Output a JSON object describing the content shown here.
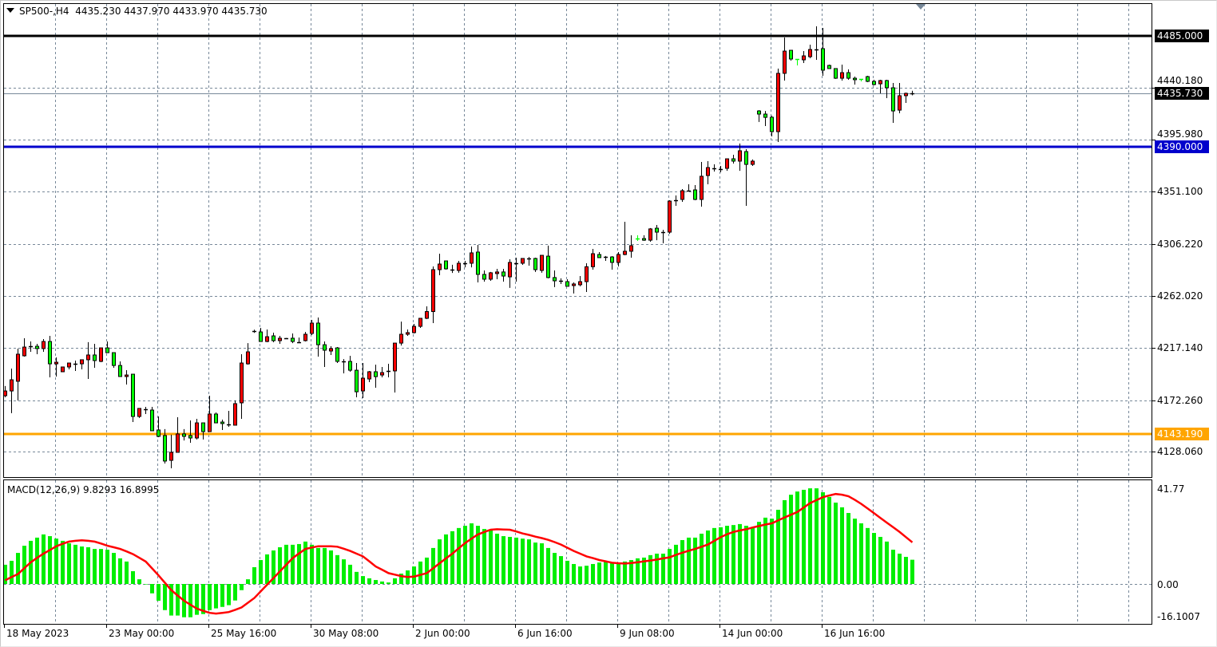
{
  "header": {
    "menu_icon": "triangle-down-icon",
    "symbol_timeframe": "SP500-,H4",
    "ohlc": "4435.230 4437.970 4433.970 4435.730"
  },
  "colors": {
    "bull_body": "#ff0000",
    "bear_body": "#00ff00",
    "wick": "#000000",
    "grid": "#778899",
    "macd_histogram": "#00ee00",
    "macd_signal": "#ff0000",
    "current_price_line": "#778899"
  },
  "price_axis": {
    "ticks": [
      "4440.180",
      "4395.980",
      "4351.100",
      "4306.220",
      "4262.020",
      "4217.140",
      "4172.260",
      "4128.060"
    ],
    "current_price": "4435.730"
  },
  "levels": [
    {
      "price": "4485.000",
      "color": "#000000"
    },
    {
      "price": "4390.000",
      "color": "#0000cc"
    },
    {
      "price": "4143.190",
      "color": "#ffa500"
    }
  ],
  "time_axis": {
    "labels": [
      "18 May 2023",
      "23 May 00:00",
      "25 May 16:00",
      "30 May 08:00",
      "2 Jun 00:00",
      "6 Jun 16:00",
      "9 Jun 08:00",
      "14 Jun 00:00",
      "16 Jun 16:00"
    ]
  },
  "macd": {
    "label": "MACD(12,26,9) 9.8293 16.8995",
    "scale_labels": [
      "41.77",
      "0.00",
      "-16.1007"
    ],
    "range": [
      -16.1007,
      41.77
    ]
  },
  "chart_data": {
    "type": "candlestick",
    "symbol": "SP500-",
    "timeframe": "H4",
    "ylim": [
      4100,
      4500
    ],
    "grid": true,
    "candle_fields": [
      "open",
      "high",
      "low",
      "close"
    ],
    "candles": [
      [
        4176.0,
        4184.3,
        4174.7,
        4180.1
      ],
      [
        4180.1,
        4199.3,
        4161.0,
        4189.7
      ],
      [
        4188.4,
        4216.5,
        4171.9,
        4211.7
      ],
      [
        4210.3,
        4225.4,
        4209.6,
        4217.8
      ],
      [
        4218.3,
        4222.6,
        4213.7,
        4218.3
      ],
      [
        4218.5,
        4220.6,
        4211.7,
        4216.5
      ],
      [
        4216.5,
        4224.7,
        4213.7,
        4222.6
      ],
      [
        4222.6,
        4227.4,
        4191.8,
        4203.4
      ],
      [
        4203.4,
        4208.9,
        4192.5,
        4204.8
      ],
      [
        4196.6,
        4200.7,
        4196.6,
        4200.7
      ],
      [
        4200.7,
        4204.1,
        4198.6,
        4204.1
      ],
      [
        4203.6,
        4206.2,
        4197.3,
        4203.6
      ],
      [
        4203.4,
        4206.9,
        4198.6,
        4206.9
      ],
      [
        4206.9,
        4222.0,
        4190.4,
        4211.0
      ],
      [
        4211.0,
        4220.6,
        4200.0,
        4206.2
      ],
      [
        4205.5,
        4217.1,
        4204.8,
        4217.1
      ],
      [
        4217.1,
        4222.6,
        4213.0,
        4213.0
      ],
      [
        4213.0,
        4213.0,
        4200.0,
        4202.0
      ],
      [
        4202.0,
        4205.5,
        4192.5,
        4192.5
      ],
      [
        4192.5,
        4198.0,
        4185.6,
        4193.8
      ],
      [
        4194.5,
        4194.5,
        4153.4,
        4158.2
      ],
      [
        4158.2,
        4165.1,
        4156.9,
        4165.1
      ],
      [
        4164.2,
        4166.4,
        4160.3,
        4164.2
      ],
      [
        4163.7,
        4166.4,
        4145.9,
        4145.9
      ],
      [
        4146.6,
        4158.2,
        4140.4,
        4141.1
      ],
      [
        4141.8,
        4147.3,
        4117.8,
        4119.9
      ],
      [
        4120.5,
        4142.5,
        4113.7,
        4127.4
      ],
      [
        4127.4,
        4157.5,
        4127.4,
        4143.2
      ],
      [
        4143.2,
        4147.3,
        4137.6,
        4141.1
      ],
      [
        4141.8,
        4154.8,
        4135.6,
        4139.7
      ],
      [
        4139.7,
        4156.2,
        4138.4,
        4152.7
      ],
      [
        4152.7,
        4152.7,
        4138.4,
        4145.2
      ],
      [
        4145.2,
        4176.0,
        4145.2,
        4160.3
      ],
      [
        4160.3,
        4161.6,
        4152.7,
        4152.7
      ],
      [
        4153.4,
        4155.5,
        4146.6,
        4152.1
      ],
      [
        4151.2,
        4163.0,
        4149.3,
        4151.2
      ],
      [
        4150.7,
        4171.9,
        4150.7,
        4169.2
      ],
      [
        4169.9,
        4211.7,
        4156.2,
        4204.1
      ],
      [
        4203.4,
        4221.2,
        4202.7,
        4213.7
      ],
      [
        4231.3,
        4232.7,
        4230.0,
        4231.3
      ],
      [
        4230.8,
        4234.3,
        4222.6,
        4222.6
      ],
      [
        4222.6,
        4232.9,
        4221.9,
        4226.7
      ],
      [
        4227.4,
        4230.2,
        4221.9,
        4223.3
      ],
      [
        4223.3,
        4227.4,
        4220.6,
        4225.4
      ],
      [
        4225.6,
        4225.6,
        4225.6,
        4225.6
      ],
      [
        4225.4,
        4229.5,
        4221.2,
        4222.6
      ],
      [
        4222.1,
        4226.0,
        4221.2,
        4222.1
      ],
      [
        4223.3,
        4230.8,
        4222.6,
        4228.8
      ],
      [
        4229.5,
        4241.1,
        4228.1,
        4238.4
      ],
      [
        4238.4,
        4243.2,
        4209.6,
        4219.8
      ],
      [
        4219.8,
        4222.6,
        4200.7,
        4215.1
      ],
      [
        4214.4,
        4218.5,
        4211.0,
        4216.5
      ],
      [
        4217.1,
        4217.8,
        4204.1,
        4205.5
      ],
      [
        4205.3,
        4207.5,
        4195.2,
        4205.3
      ],
      [
        4205.5,
        4210.3,
        4196.6,
        4197.9
      ],
      [
        4197.9,
        4204.1,
        4174.7,
        4179.4
      ],
      [
        4180.1,
        4204.1,
        4174.0,
        4191.1
      ],
      [
        4190.4,
        4197.3,
        4187.7,
        4196.6
      ],
      [
        4196.6,
        4202.7,
        4182.9,
        4192.4
      ],
      [
        4193.8,
        4200.7,
        4191.8,
        4195.9
      ],
      [
        4197.1,
        4203.4,
        4191.8,
        4197.1
      ],
      [
        4197.3,
        4221.2,
        4178.8,
        4221.2
      ],
      [
        4221.2,
        4239.7,
        4219.1,
        4228.8
      ],
      [
        4228.8,
        4232.9,
        4227.4,
        4230.2
      ],
      [
        4230.2,
        4237.7,
        4229.5,
        4235.6
      ],
      [
        4235.6,
        4242.5,
        4234.3,
        4242.5
      ],
      [
        4242.5,
        4252.8,
        4241.8,
        4248.3
      ],
      [
        4248.3,
        4287.0,
        4238.4,
        4284.3
      ],
      [
        4284.3,
        4298.0,
        4279.5,
        4289.1
      ],
      [
        4291.8,
        4291.8,
        4284.3,
        4285.0
      ],
      [
        4284.5,
        4288.5,
        4281.5,
        4284.5
      ],
      [
        4283.6,
        4291.8,
        4281.6,
        4289.8
      ],
      [
        4289.6,
        4291.8,
        4286.3,
        4289.6
      ],
      [
        4289.8,
        4304.2,
        4286.3,
        4298.7
      ],
      [
        4299.4,
        4305.5,
        4273.3,
        4280.2
      ],
      [
        4280.2,
        4283.6,
        4274.0,
        4276.1
      ],
      [
        4276.1,
        4282.3,
        4274.7,
        4281.6
      ],
      [
        4280.9,
        4285.0,
        4276.1,
        4282.3
      ],
      [
        4282.3,
        4285.0,
        4274.0,
        4278.8
      ],
      [
        4278.1,
        4293.2,
        4268.6,
        4290.5
      ],
      [
        4290.0,
        4294.6,
        4274.0,
        4290.0
      ],
      [
        4289.8,
        4293.9,
        4288.4,
        4293.9
      ],
      [
        4293.7,
        4295.2,
        4287.7,
        4293.7
      ],
      [
        4293.9,
        4294.6,
        4282.3,
        4284.3
      ],
      [
        4283.6,
        4296.6,
        4281.6,
        4296.6
      ],
      [
        4295.9,
        4304.9,
        4276.8,
        4277.5
      ],
      [
        4277.5,
        4283.6,
        4269.3,
        4274.7
      ],
      [
        4274.5,
        4276.8,
        4272.0,
        4274.5
      ],
      [
        4274.0,
        4276.1,
        4270.0,
        4270.0
      ],
      [
        4270.6,
        4273.3,
        4263.8,
        4272.0
      ],
      [
        4271.3,
        4278.8,
        4270.0,
        4274.0
      ],
      [
        4274.0,
        4289.8,
        4265.1,
        4286.8
      ],
      [
        4286.8,
        4302.1,
        4284.3,
        4298.0
      ],
      [
        4297.3,
        4299.4,
        4294.6,
        4294.6
      ],
      [
        4295.1,
        4296.0,
        4291.8,
        4295.1
      ],
      [
        4295.2,
        4295.9,
        4284.3,
        4290.5
      ],
      [
        4290.5,
        4299.4,
        4287.0,
        4297.3
      ],
      [
        4297.3,
        4325.4,
        4296.6,
        4300.1
      ],
      [
        4300.1,
        4313.8,
        4294.6,
        4304.9
      ],
      [
        4310.8,
        4313.8,
        4309.0,
        4310.7
      ],
      [
        4311.0,
        4313.8,
        4309.0,
        4309.6
      ],
      [
        4309.6,
        4320.0,
        4308.3,
        4319.3
      ],
      [
        4319.9,
        4322.7,
        4309.6,
        4316.5
      ],
      [
        4316.3,
        4318.5,
        4306.9,
        4316.3
      ],
      [
        4316.5,
        4343.9,
        4315.1,
        4343.2
      ],
      [
        4344.1,
        4348.0,
        4339.1,
        4344.1
      ],
      [
        4344.6,
        4353.5,
        4342.5,
        4352.1
      ],
      [
        4352.1,
        4357.6,
        4351.4,
        4352.1
      ],
      [
        4352.8,
        4356.9,
        4343.9,
        4344.6
      ],
      [
        4344.6,
        4376.8,
        4338.4,
        4364.5
      ],
      [
        4365.1,
        4377.5,
        4357.6,
        4372.0
      ],
      [
        4371.5,
        4374.7,
        4368.6,
        4371.5
      ],
      [
        4370.8,
        4373.4,
        4367.9,
        4370.8
      ],
      [
        4371.3,
        4379.5,
        4369.2,
        4379.5
      ],
      [
        4379.5,
        4383.0,
        4375.4,
        4377.5
      ],
      [
        4377.5,
        4392.6,
        4369.2,
        4386.4
      ],
      [
        4385.7,
        4387.8,
        4339.1,
        4374.7
      ],
      [
        4374.7,
        4378.9,
        4373.4,
        4377.5
      ],
      [
        4420.6,
        4421.3,
        4411.1,
        4417.9
      ],
      [
        4417.9,
        4420.6,
        4407.6,
        4415.1
      ],
      [
        4415.2,
        4416.5,
        4398.7,
        4402.8
      ],
      [
        4402.8,
        4457.0,
        4393.9,
        4452.9
      ],
      [
        4452.9,
        4483.7,
        4446.7,
        4472.0
      ],
      [
        4472.7,
        4472.7,
        4463.8,
        4465.2
      ],
      [
        4465.0,
        4465.0,
        4459.7,
        4464.9
      ],
      [
        4464.5,
        4472.0,
        4461.8,
        4467.9
      ],
      [
        4467.2,
        4477.5,
        4465.9,
        4473.4
      ],
      [
        4473.6,
        4493.3,
        4464.5,
        4473.6
      ],
      [
        4474.1,
        4491.9,
        4450.8,
        4455.6
      ],
      [
        4459.7,
        4460.4,
        4457.0,
        4457.0
      ],
      [
        4457.0,
        4457.0,
        4448.1,
        4448.7
      ],
      [
        4448.7,
        4460.4,
        4446.7,
        4453.5
      ],
      [
        4453.5,
        4456.3,
        4447.4,
        4448.7
      ],
      [
        4448.7,
        4450.1,
        4443.3,
        4447.4
      ],
      [
        4447.9,
        4447.9,
        4446.0,
        4447.8
      ],
      [
        4450.1,
        4450.8,
        4445.3,
        4446.0
      ],
      [
        4446.0,
        4447.4,
        4442.6,
        4443.3
      ],
      [
        4443.9,
        4447.4,
        4435.7,
        4446.7
      ],
      [
        4446.7,
        4447.4,
        4431.6,
        4440.5
      ],
      [
        4440.5,
        4444.6,
        4410.4,
        4420.6
      ],
      [
        4421.3,
        4444.6,
        4418.6,
        4433.7
      ],
      [
        4433.7,
        4436.4,
        4427.5,
        4435.7
      ],
      [
        4435.23,
        4437.97,
        4433.97,
        4435.73
      ]
    ],
    "macd_histogram": [
      7.8,
      9.4,
      12.6,
      15.5,
      17.5,
      18.8,
      20.1,
      19.4,
      18.4,
      17.5,
      16.5,
      15.9,
      15.2,
      14.9,
      14.2,
      14.2,
      13.9,
      12.6,
      10.4,
      9.1,
      5.2,
      1.9,
      -0.2,
      -3.8,
      -6.8,
      -10.6,
      -12.8,
      -12.8,
      -13.5,
      -13.5,
      -12.5,
      -12.2,
      -10.6,
      -9.9,
      -9.3,
      -8.6,
      -6.7,
      -2.5,
      1.9,
      6.8,
      9.7,
      12.0,
      13.6,
      14.9,
      15.9,
      15.9,
      16.2,
      17.2,
      15.9,
      14.6,
      14.6,
      13.6,
      11.7,
      10.0,
      7.8,
      4.9,
      3.2,
      2.3,
      1.6,
      1.0,
      0.6,
      2.3,
      4.2,
      5.5,
      7.1,
      9.1,
      10.7,
      14.6,
      18.1,
      20.1,
      21.4,
      22.7,
      23.6,
      24.6,
      23.6,
      22.3,
      21.7,
      20.4,
      19.4,
      19.1,
      18.8,
      18.4,
      18.1,
      16.8,
      16.5,
      14.6,
      12.6,
      11.3,
      9.4,
      8.1,
      7.1,
      7.4,
      8.1,
      8.7,
      9.1,
      8.7,
      8.7,
      9.1,
      9.7,
      10.4,
      10.7,
      11.7,
      12.3,
      12.3,
      14.2,
      15.9,
      17.8,
      18.8,
      18.8,
      20.4,
      21.7,
      22.7,
      23.0,
      23.6,
      23.9,
      24.3,
      23.6,
      22.7,
      25.2,
      26.9,
      26.5,
      30.1,
      34.0,
      36.2,
      37.5,
      38.2,
      38.8,
      38.8,
      37.2,
      35.3,
      33.0,
      31.1,
      28.8,
      26.5,
      24.6,
      22.7,
      20.7,
      19.1,
      17.2,
      13.9,
      12.3,
      11.0,
      9.8293
    ],
    "macd_signal": [
      1.5,
      2.8,
      4.0,
      6.4,
      8.8,
      10.6,
      12.3,
      13.8,
      15.3,
      16.3,
      17.2,
      17.5,
      17.7,
      17.5,
      17.2,
      16.4,
      15.5,
      14.9,
      14.2,
      13.2,
      12.1,
      10.6,
      9.1,
      6.3,
      3.5,
      0.5,
      -2.5,
      -4.7,
      -6.8,
      -8.4,
      -10.0,
      -10.9,
      -11.7,
      -12.0,
      -11.7,
      -11.4,
      -10.5,
      -9.5,
      -7.6,
      -5.7,
      -3.0,
      -0.3,
      2.4,
      5.1,
      7.8,
      10.5,
      12.4,
      14.2,
      14.8,
      15.3,
      15.3,
      15.3,
      15.1,
      14.3,
      13.4,
      12.3,
      11.2,
      9.2,
      7.1,
      5.8,
      4.4,
      3.8,
      3.2,
      2.8,
      3.0,
      3.7,
      4.4,
      6.4,
      8.4,
      10.4,
      12.3,
      14.5,
      16.6,
      18.4,
      20.1,
      21.1,
      22.0,
      22.2,
      22.1,
      22.0,
      21.3,
      20.5,
      19.9,
      19.2,
      18.6,
      17.9,
      17.0,
      16.0,
      14.7,
      13.4,
      12.3,
      11.2,
      10.5,
      9.7,
      9.2,
      8.6,
      8.4,
      8.3,
      8.5,
      8.8,
      9.2,
      9.5,
      9.9,
      10.4,
      10.8,
      11.8,
      12.7,
      13.5,
      14.2,
      15.1,
      16.0,
      17.5,
      19.0,
      20.2,
      21.1,
      21.7,
      22.2,
      22.9,
      23.5,
      24.1,
      24.6,
      25.8,
      27.0,
      28.1,
      29.2,
      31.0,
      32.8,
      34.0,
      35.2,
      35.9,
      36.5,
      36.2,
      35.6,
      34.1,
      32.5,
      30.6,
      28.7,
      26.8,
      24.9,
      23.0,
      21.1,
      19.0,
      16.8995
    ]
  }
}
